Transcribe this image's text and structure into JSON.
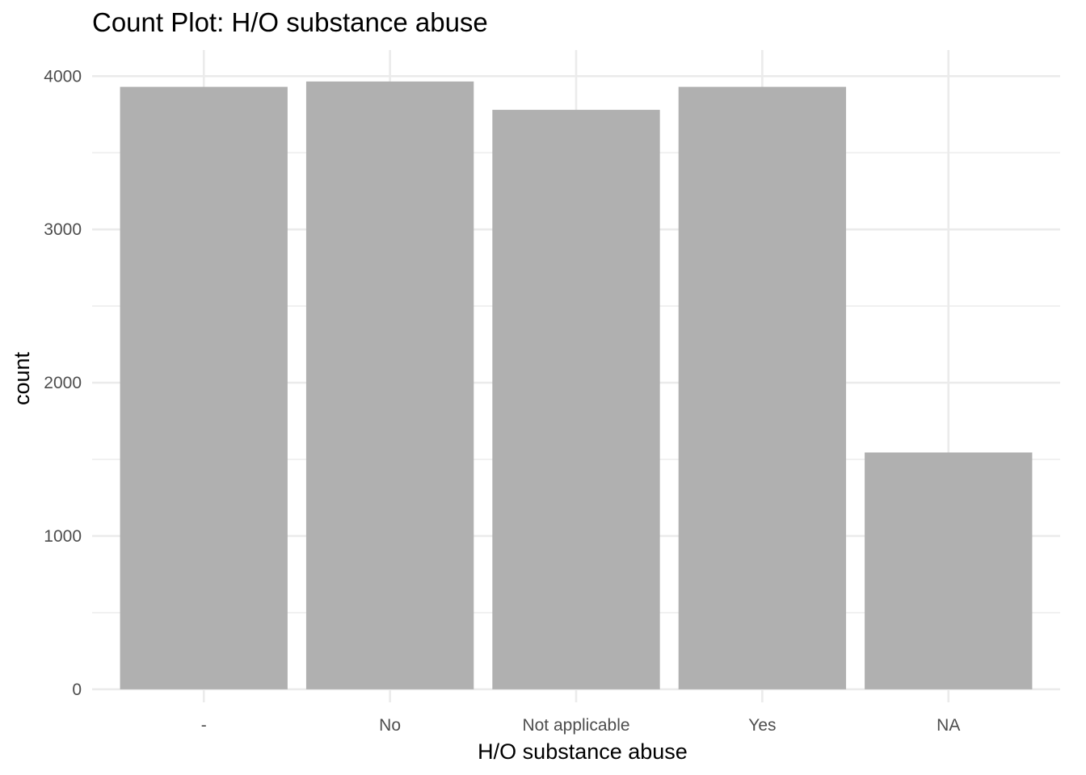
{
  "chart_data": {
    "type": "bar",
    "title": "Count Plot: H/O substance abuse",
    "xlabel": "H/O substance abuse",
    "ylabel": "count",
    "categories": [
      "-",
      "No",
      "Not applicable",
      "Yes",
      "NA"
    ],
    "values": [
      3930,
      3965,
      3780,
      3930,
      1545
    ],
    "ylim": [
      -85,
      4170
    ],
    "yticks": [
      0,
      1000,
      2000,
      3000,
      4000
    ],
    "ytick_labels": [
      "0",
      "1000",
      "2000",
      "3000",
      "4000"
    ],
    "grid": true,
    "legend": "none",
    "bar_color": "#b0b0b0",
    "grid_color": "#ebebeb"
  }
}
